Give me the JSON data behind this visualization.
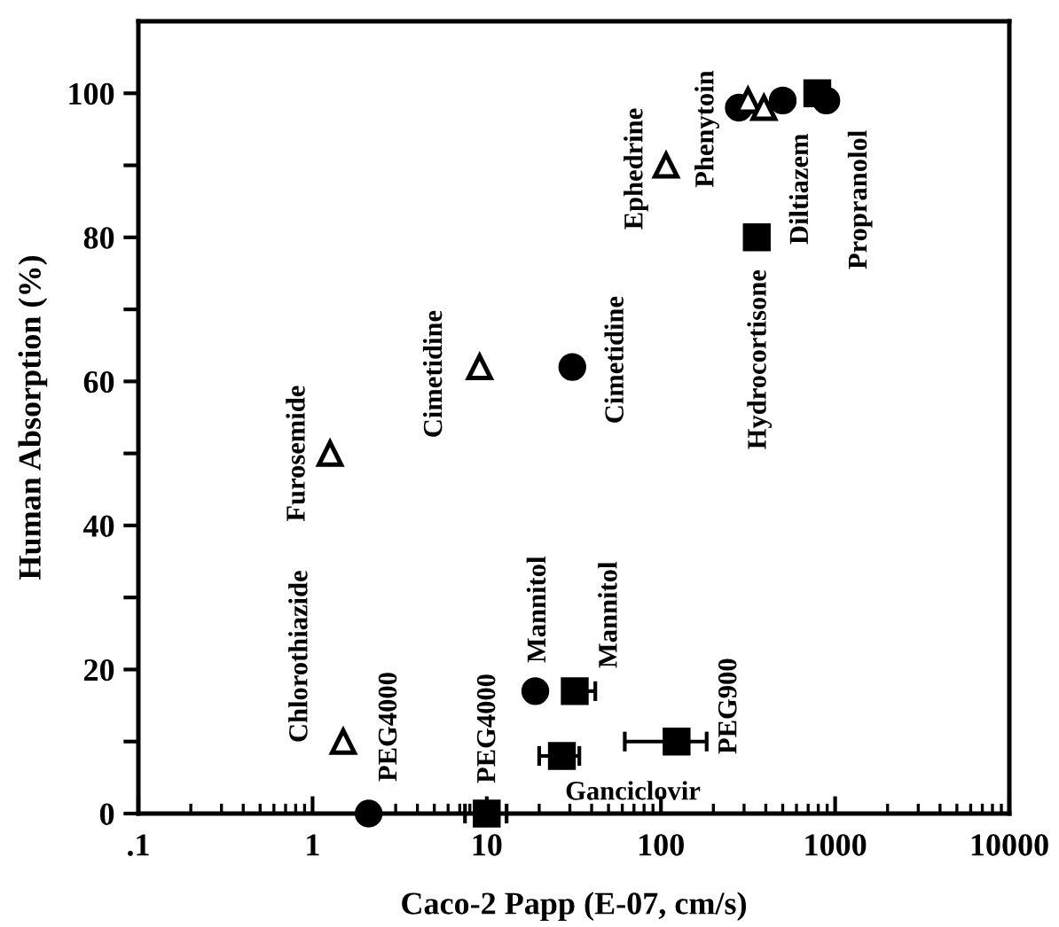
{
  "chart_data": {
    "type": "scatter",
    "xlabel": "Caco-2 Papp (E-07, cm/s)",
    "ylabel": "Human Absorption (%)",
    "log": "x",
    "xlim": [
      0.1,
      10000
    ],
    "xticks": [
      {
        "value": 0.1,
        "label": ".1"
      },
      1,
      10,
      100,
      1000,
      10000
    ],
    "ylim": [
      0,
      110
    ],
    "yticks": [
      0,
      {
        "value": 10,
        "label": null
      },
      20,
      {
        "value": 30,
        "label": null
      },
      40,
      {
        "value": 50,
        "label": null
      },
      60,
      {
        "value": 70,
        "label": null
      },
      80,
      {
        "value": 90,
        "label": null
      },
      100
    ],
    "grid": false,
    "legend": false,
    "series": [
      {
        "color": "#000000",
        "marker": "circle",
        "x": [
          2.1,
          31,
          19,
          280,
          500,
          890
        ],
        "values": [
          0,
          62,
          17,
          98,
          99,
          99
        ]
      },
      {
        "color": "#000000",
        "marker": "square",
        "x": [
          10,
          32,
          27,
          123,
          355,
          790
        ],
        "values": [
          0,
          17,
          8,
          10,
          80,
          100
        ],
        "xerrors": [
          [
            7.5,
            13
          ],
          [
            32,
            42
          ],
          [
            20,
            34
          ],
          [
            62,
            183
          ],
          null,
          null
        ]
      },
      {
        "color": "#000000",
        "marker": "triangle",
        "x": [
          1.26,
          1.5,
          9.1,
          107,
          316,
          390
        ],
        "values": [
          50,
          10,
          62,
          90,
          99,
          98
        ]
      }
    ],
    "annotations": [
      {
        "text": "Furosemide",
        "x": 1.26,
        "y": 50
      },
      {
        "text": "Cimetidine",
        "x": 9.1,
        "y": 62
      },
      {
        "text": "Cimetidine",
        "x": 31,
        "y": 62
      },
      {
        "text": "Ephedrine",
        "x": 107,
        "y": 90
      },
      {
        "text": "Phenytoin",
        "x": 280,
        "y": 98
      },
      "Hydrocortisone",
      {
        "text": "Diltiazem",
        "x": 790,
        "y": 100
      },
      {
        "text": "Propranolol",
        "x": 890,
        "y": 99
      },
      {
        "text": "Chlorothiazide",
        "x": 1.5,
        "y": 10
      },
      {
        "text": "PEG4000",
        "x": 2.1,
        "y": 0
      },
      {
        "text": "PEG4000",
        "x": 10,
        "y": 0
      },
      {
        "text": "Mannitol",
        "x": 19,
        "y": 17
      },
      {
        "text": "Mannitol",
        "x": 32,
        "y": 17
      },
      {
        "text": "PEG900",
        "x": 123,
        "y": 10
      },
      {
        "text": "Ganciclovir",
        "x": 27,
        "y": 8
      }
    ]
  }
}
